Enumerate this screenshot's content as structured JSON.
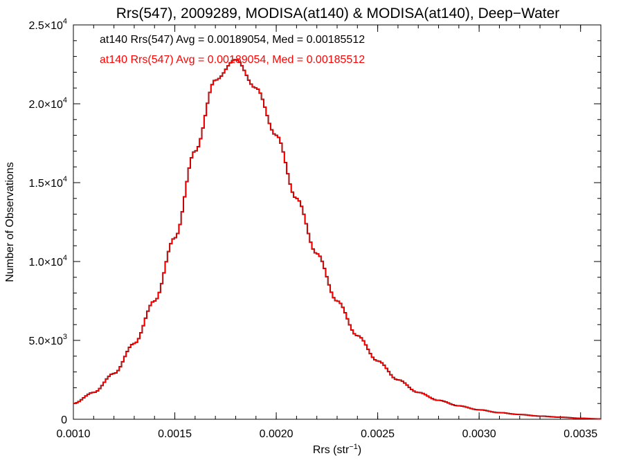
{
  "chart_data": {
    "type": "histogram",
    "title": "Rrs(547), 2009289, MODISA(at140) & MODISA(at140), Deep−Water",
    "xlabel": "Rrs (str",
    "xlabel_exp": "−1",
    "xlabel_close": ")",
    "ylabel": "Number of Observations",
    "xlim": [
      0.001,
      0.0036
    ],
    "ylim": [
      0,
      25000
    ],
    "xticks": [
      {
        "value": 0.001,
        "label": "0.0010"
      },
      {
        "value": 0.0015,
        "label": "0.0015"
      },
      {
        "value": 0.002,
        "label": "0.0020"
      },
      {
        "value": 0.0025,
        "label": "0.0025"
      },
      {
        "value": 0.003,
        "label": "0.0030"
      },
      {
        "value": 0.0035,
        "label": "0.0035"
      }
    ],
    "yticks": [
      {
        "value": 0,
        "mant": "0",
        "exp": ""
      },
      {
        "value": 5000,
        "mant": "5.0×10",
        "exp": "3"
      },
      {
        "value": 10000,
        "mant": "1.0×10",
        "exp": "4"
      },
      {
        "value": 15000,
        "mant": "1.5×10",
        "exp": "4"
      },
      {
        "value": 20000,
        "mant": "2.0×10",
        "exp": "4"
      },
      {
        "value": 25000,
        "mant": "2.5×10",
        "exp": "4"
      }
    ],
    "annotations": [
      {
        "text": "at140 Rrs(547) Avg = 0.00189054, Med = 0.00185512",
        "color": "#000000"
      },
      {
        "text": "at140 Rrs(547) Avg = 0.00189054, Med = 0.00185512",
        "color": "#ff0000"
      }
    ],
    "series": [
      {
        "color": "#000000",
        "x": [
          0.001,
          0.0011,
          0.0012,
          0.0013,
          0.0014,
          0.0015,
          0.0016,
          0.0017,
          0.0018,
          0.0019,
          0.002,
          0.0021,
          0.0022,
          0.0023,
          0.0024,
          0.0025,
          0.0026,
          0.0027,
          0.0028,
          0.0029,
          0.003,
          0.0031,
          0.0032,
          0.0033,
          0.0034,
          0.0035,
          0.0036
        ],
        "y": [
          1000,
          1700,
          2900,
          4800,
          7500,
          11500,
          17000,
          21500,
          22800,
          21000,
          18000,
          14000,
          10500,
          7500,
          5300,
          3700,
          2500,
          1700,
          1200,
          850,
          600,
          420,
          300,
          200,
          130,
          60,
          20
        ]
      },
      {
        "color": "#ff0000",
        "x": [
          0.001,
          0.0011,
          0.0012,
          0.0013,
          0.0014,
          0.0015,
          0.0016,
          0.0017,
          0.0018,
          0.0019,
          0.002,
          0.0021,
          0.0022,
          0.0023,
          0.0024,
          0.0025,
          0.0026,
          0.0027,
          0.0028,
          0.0029,
          0.003,
          0.0031,
          0.0032,
          0.0033,
          0.0034,
          0.0035,
          0.0036
        ],
        "y": [
          1000,
          1700,
          2900,
          4800,
          7500,
          11500,
          17000,
          21500,
          22800,
          21000,
          18000,
          14000,
          10500,
          7500,
          5300,
          3700,
          2500,
          1700,
          1200,
          850,
          600,
          420,
          300,
          200,
          130,
          60,
          20
        ]
      }
    ],
    "grid": false
  }
}
